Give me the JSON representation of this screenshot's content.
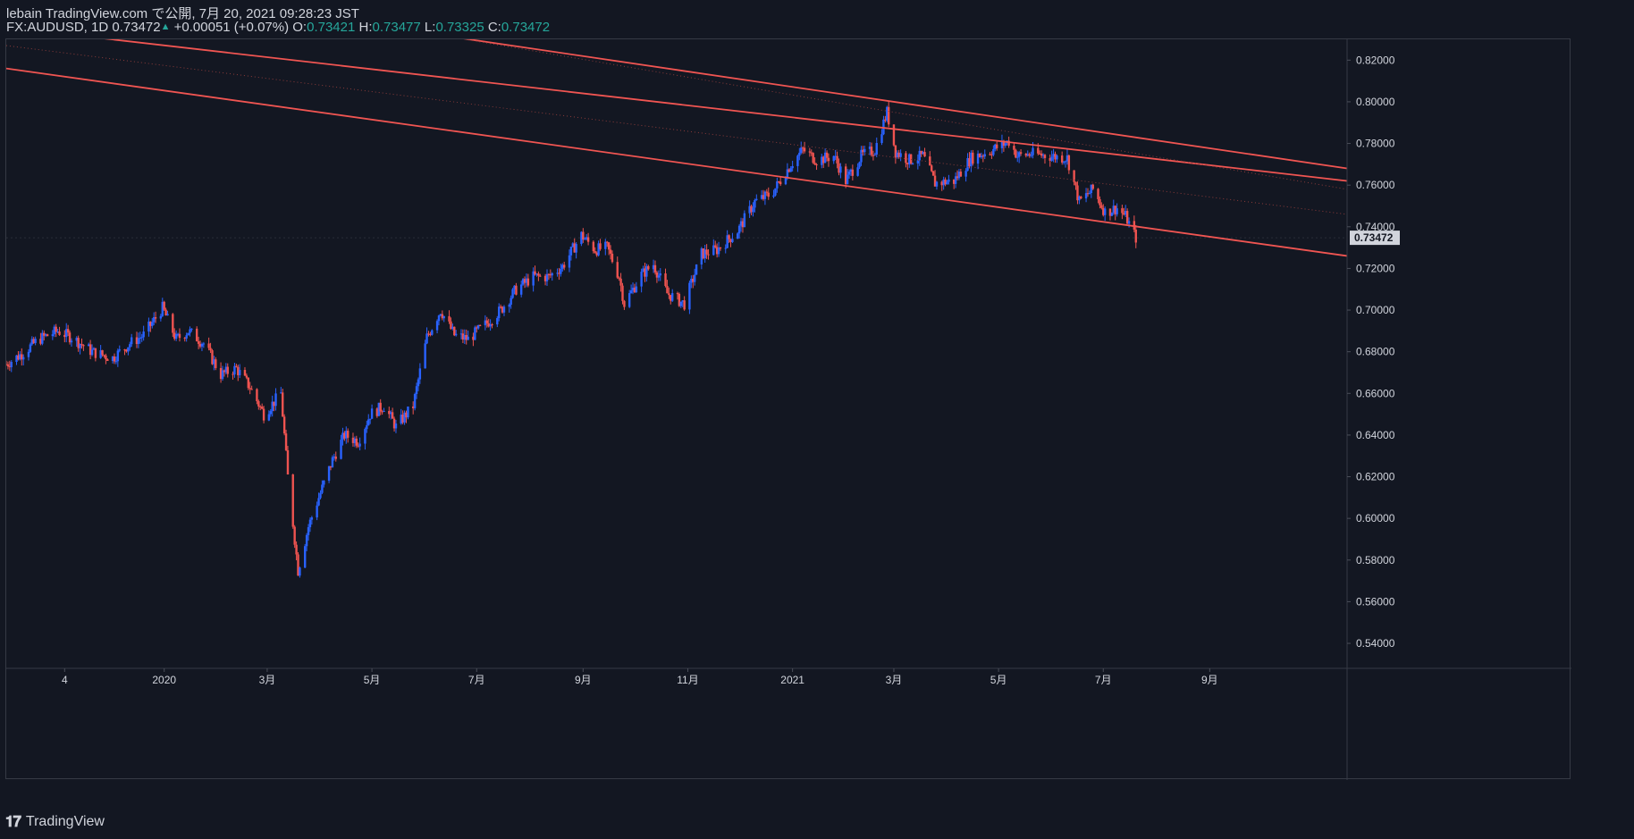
{
  "header": {
    "publish_line": "lebain TradingView.com で公開, 7月 20, 2021 09:28:23 JST",
    "symbol": "FX:AUDUSD, 1D",
    "last": "0.73472",
    "change": "+0.00051 (+0.07%)",
    "o_label": "O:",
    "o": "0.73421",
    "h_label": "H:",
    "h": "0.73477",
    "l_label": "L:",
    "l": "0.73325",
    "c_label": "C:",
    "c": "0.73472"
  },
  "footer": {
    "brand": "TradingView",
    "logo_glyph": "𝟏𝟕"
  },
  "colors": {
    "background": "#131722",
    "up": "#2962ff",
    "down": "#ef5350",
    "line": "#f05552",
    "price_tag": "#d1d4dc"
  },
  "chart_data": {
    "type": "candlestick",
    "symbol": "FX:AUDUSD",
    "interval": "1D",
    "ylim": [
      0.528,
      0.83
    ],
    "y_ticks": [
      "0.82000",
      "0.80000",
      "0.78000",
      "0.76000",
      "0.74000",
      "0.72000",
      "0.70000",
      "0.68000",
      "0.66000",
      "0.64000",
      "0.62000",
      "0.60000",
      "0.58000",
      "0.56000",
      "0.54000"
    ],
    "x_ticks": [
      {
        "label": "4",
        "date": "2019-11-04"
      },
      {
        "label": "2020",
        "date": "2020-01-01"
      },
      {
        "label": "3月",
        "date": "2020-03-01"
      },
      {
        "label": "5月",
        "date": "2020-05-01"
      },
      {
        "label": "7月",
        "date": "2020-07-01"
      },
      {
        "label": "9月",
        "date": "2020-09-01"
      },
      {
        "label": "11月",
        "date": "2020-11-01"
      },
      {
        "label": "2021",
        "date": "2021-01-01"
      },
      {
        "label": "3月",
        "date": "2021-03-01"
      },
      {
        "label": "5月",
        "date": "2021-05-01"
      },
      {
        "label": "7月",
        "date": "2021-07-01"
      },
      {
        "label": "9月",
        "date": "2021-09-01"
      }
    ],
    "x_range": [
      "2019-10-01",
      "2021-11-20"
    ],
    "last_price": "0.73472",
    "price_path": [
      [
        "2019-10-01",
        0.674
      ],
      [
        "2019-10-10",
        0.679
      ],
      [
        "2019-10-20",
        0.686
      ],
      [
        "2019-10-31",
        0.69
      ],
      [
        "2019-11-08",
        0.687
      ],
      [
        "2019-11-20",
        0.68
      ],
      [
        "2019-12-02",
        0.677
      ],
      [
        "2019-12-12",
        0.684
      ],
      [
        "2019-12-20",
        0.688
      ],
      [
        "2019-12-31",
        0.701
      ],
      [
        "2020-01-08",
        0.686
      ],
      [
        "2020-01-15",
        0.69
      ],
      [
        "2020-01-24",
        0.684
      ],
      [
        "2020-02-03",
        0.669
      ],
      [
        "2020-02-12",
        0.672
      ],
      [
        "2020-02-20",
        0.663
      ],
      [
        "2020-02-28",
        0.65
      ],
      [
        "2020-03-09",
        0.66
      ],
      [
        "2020-03-13",
        0.62
      ],
      [
        "2020-03-19",
        0.575
      ],
      [
        "2020-03-25",
        0.596
      ],
      [
        "2020-03-31",
        0.61
      ],
      [
        "2020-04-08",
        0.628
      ],
      [
        "2020-04-15",
        0.64
      ],
      [
        "2020-04-23",
        0.637
      ],
      [
        "2020-04-30",
        0.65
      ],
      [
        "2020-05-08",
        0.654
      ],
      [
        "2020-05-15",
        0.644
      ],
      [
        "2020-05-25",
        0.654
      ],
      [
        "2020-06-02",
        0.687
      ],
      [
        "2020-06-10",
        0.7
      ],
      [
        "2020-06-18",
        0.688
      ],
      [
        "2020-06-26",
        0.686
      ],
      [
        "2020-07-06",
        0.693
      ],
      [
        "2020-07-15",
        0.7
      ],
      [
        "2020-07-24",
        0.71
      ],
      [
        "2020-08-03",
        0.716
      ],
      [
        "2020-08-12",
        0.716
      ],
      [
        "2020-08-20",
        0.721
      ],
      [
        "2020-08-31",
        0.736
      ],
      [
        "2020-09-08",
        0.729
      ],
      [
        "2020-09-15",
        0.73
      ],
      [
        "2020-09-22",
        0.716
      ],
      [
        "2020-09-25",
        0.703
      ],
      [
        "2020-10-05",
        0.717
      ],
      [
        "2020-10-12",
        0.722
      ],
      [
        "2020-10-20",
        0.708
      ],
      [
        "2020-10-30",
        0.703
      ],
      [
        "2020-11-09",
        0.727
      ],
      [
        "2020-11-18",
        0.729
      ],
      [
        "2020-11-30",
        0.738
      ],
      [
        "2020-12-10",
        0.752
      ],
      [
        "2020-12-20",
        0.756
      ],
      [
        "2020-12-31",
        0.77
      ],
      [
        "2021-01-07",
        0.777
      ],
      [
        "2021-01-15",
        0.772
      ],
      [
        "2021-01-25",
        0.774
      ],
      [
        "2021-02-01",
        0.762
      ],
      [
        "2021-02-10",
        0.774
      ],
      [
        "2021-02-18",
        0.777
      ],
      [
        "2021-02-25",
        0.795
      ],
      [
        "2021-03-02",
        0.776
      ],
      [
        "2021-03-10",
        0.772
      ],
      [
        "2021-03-18",
        0.774
      ],
      [
        "2021-03-25",
        0.761
      ],
      [
        "2021-04-05",
        0.762
      ],
      [
        "2021-04-15",
        0.773
      ],
      [
        "2021-04-25",
        0.776
      ],
      [
        "2021-05-07",
        0.781
      ],
      [
        "2021-05-12",
        0.774
      ],
      [
        "2021-05-20",
        0.775
      ],
      [
        "2021-05-31",
        0.774
      ],
      [
        "2021-06-10",
        0.773
      ],
      [
        "2021-06-17",
        0.752
      ],
      [
        "2021-06-25",
        0.758
      ],
      [
        "2021-07-02",
        0.747
      ],
      [
        "2021-07-09",
        0.749
      ],
      [
        "2021-07-14",
        0.745
      ],
      [
        "2021-07-20",
        0.7347
      ]
    ]
  },
  "channel_lines": [
    {
      "style": "solid",
      "start": [
        "2019-11-10",
        0.832
      ],
      "end": [
        "2021-11-20",
        0.762
      ]
    },
    {
      "style": "dotted",
      "start": [
        "2019-10-01",
        0.827
      ],
      "end": [
        "2021-11-20",
        0.746
      ]
    },
    {
      "style": "solid",
      "start": [
        "2019-10-01",
        0.816
      ],
      "end": [
        "2021-11-20",
        0.726
      ]
    },
    {
      "style": "solid",
      "start": [
        "2020-06-10",
        0.832
      ],
      "end": [
        "2021-11-20",
        0.768
      ]
    },
    {
      "style": "dotted",
      "start": [
        "2020-06-10",
        0.832
      ],
      "end": [
        "2021-11-20",
        0.758
      ]
    }
  ]
}
